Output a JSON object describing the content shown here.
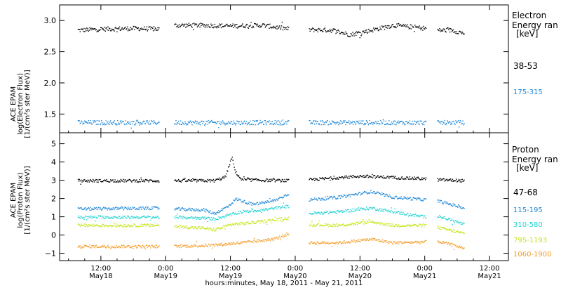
{
  "xaxis": {
    "caption": "hours:minutes, May 18, 2011 - May 21, 2011",
    "ticks": [
      {
        "t": 12,
        "top": "12:00",
        "bottom": "May18"
      },
      {
        "t": 24,
        "top": "0:00",
        "bottom": "May19"
      },
      {
        "t": 36,
        "top": "12:00",
        "bottom": "May19"
      },
      {
        "t": 48,
        "top": "0:00",
        "bottom": "May20"
      },
      {
        "t": 60,
        "top": "12:00",
        "bottom": "May20"
      },
      {
        "t": 72,
        "top": "0:00",
        "bottom": "May21"
      },
      {
        "t": 84,
        "top": "12:00",
        "bottom": "May21"
      }
    ]
  },
  "chart_data": [
    {
      "type": "scatter",
      "title": "",
      "ylabel_lines": [
        "ACE EPAM",
        "log(Electron Flux)",
        "[1/(cm²s ster MeV)]"
      ],
      "legend_title": [
        "Electron",
        "Energy ran",
        "[keV]"
      ],
      "ylim": [
        1.2,
        3.25
      ],
      "yticks": [
        1.5,
        2.0,
        2.5,
        3.0
      ],
      "ytick_labels": [
        "1.5",
        "2.0",
        "2.5",
        "3.0"
      ],
      "x_unit": "hours since 2011-05-18 00:00",
      "data_gaps": [
        [
          22.8,
          25.5
        ],
        [
          46.8,
          50.5
        ],
        [
          72.2,
          74.2
        ]
      ],
      "x_range": [
        7.7,
        79.3
      ],
      "series": [
        {
          "name": "38-53",
          "color": "#000000",
          "level": 2.88,
          "profile": [
            [
              7.7,
              2.85
            ],
            [
              12,
              2.87
            ],
            [
              18,
              2.88
            ],
            [
              22.8,
              2.87
            ],
            [
              25.5,
              2.93
            ],
            [
              30,
              2.93
            ],
            [
              36,
              2.92
            ],
            [
              42,
              2.93
            ],
            [
              46.8,
              2.87
            ],
            [
              50.5,
              2.86
            ],
            [
              55,
              2.85
            ],
            [
              58,
              2.78
            ],
            [
              62,
              2.85
            ],
            [
              66,
              2.93
            ],
            [
              70,
              2.9
            ],
            [
              72.2,
              2.88
            ],
            [
              74.2,
              2.85
            ],
            [
              77,
              2.85
            ],
            [
              79.3,
              2.8
            ]
          ]
        },
        {
          "name": "175-315",
          "color": "#1e88d8",
          "level": 1.37,
          "profile": [
            [
              7.7,
              1.37
            ],
            [
              22.8,
              1.37
            ],
            [
              25.5,
              1.37
            ],
            [
              46.8,
              1.37
            ],
            [
              50.5,
              1.37
            ],
            [
              72.2,
              1.37
            ],
            [
              74.2,
              1.37
            ],
            [
              79.3,
              1.37
            ]
          ]
        }
      ]
    },
    {
      "type": "scatter",
      "title": "",
      "ylabel_lines": [
        "ACE EPAM",
        "log(Proton Flux)",
        "[1/(cm²s ster MeV)]"
      ],
      "legend_title": [
        "Proton",
        "Energy ran",
        "[keV]"
      ],
      "ylim": [
        -1.4,
        5.6
      ],
      "yticks": [
        -1,
        0,
        1,
        2,
        3,
        4,
        5
      ],
      "ytick_labels": [
        "−1",
        "0",
        "1",
        "2",
        "3",
        "4",
        "5"
      ],
      "x_unit": "hours since 2011-05-18 00:00",
      "data_gaps": [
        [
          22.8,
          25.5
        ],
        [
          46.8,
          50.5
        ],
        [
          72.2,
          74.2
        ]
      ],
      "x_range": [
        7.7,
        79.3
      ],
      "series": [
        {
          "name": "47-68",
          "color": "#000000",
          "profile": [
            [
              7.7,
              3.0
            ],
            [
              22.8,
              3.0
            ],
            [
              25.5,
              3.0
            ],
            [
              33,
              3.0
            ],
            [
              35,
              3.2
            ],
            [
              36.2,
              4.3
            ],
            [
              36.8,
              3.5
            ],
            [
              38,
              3.05
            ],
            [
              46.8,
              3.0
            ],
            [
              50.5,
              3.05
            ],
            [
              60,
              3.25
            ],
            [
              72.2,
              3.1
            ],
            [
              74.2,
              3.05
            ],
            [
              79.3,
              3.0
            ]
          ]
        },
        {
          "name": "115-195",
          "color": "#1e88d8",
          "profile": [
            [
              7.7,
              1.45
            ],
            [
              22.8,
              1.5
            ],
            [
              25.5,
              1.45
            ],
            [
              31,
              1.4
            ],
            [
              33,
              1.2
            ],
            [
              35.5,
              1.6
            ],
            [
              37,
              2.0
            ],
            [
              40,
              1.7
            ],
            [
              44,
              1.9
            ],
            [
              46.8,
              2.3
            ],
            [
              50.5,
              1.95
            ],
            [
              56,
              2.1
            ],
            [
              62,
              2.4
            ],
            [
              66,
              2.1
            ],
            [
              72.2,
              1.95
            ],
            [
              74.2,
              1.9
            ],
            [
              79.3,
              1.5
            ]
          ]
        },
        {
          "name": "310-580",
          "color": "#22d3d3",
          "profile": [
            [
              7.7,
              1.0
            ],
            [
              22.8,
              1.0
            ],
            [
              25.5,
              1.0
            ],
            [
              31,
              0.95
            ],
            [
              33,
              0.9
            ],
            [
              35.5,
              1.1
            ],
            [
              38,
              1.3
            ],
            [
              42,
              1.4
            ],
            [
              46.8,
              1.6
            ],
            [
              50.5,
              1.2
            ],
            [
              56,
              1.3
            ],
            [
              62,
              1.5
            ],
            [
              66,
              1.3
            ],
            [
              72.2,
              1.0
            ],
            [
              74.2,
              1.1
            ],
            [
              79.3,
              0.6
            ]
          ]
        },
        {
          "name": "795-1193",
          "color": "#c7e31a",
          "profile": [
            [
              7.7,
              0.55
            ],
            [
              22.8,
              0.55
            ],
            [
              25.5,
              0.5
            ],
            [
              31,
              0.4
            ],
            [
              33,
              0.3
            ],
            [
              36,
              0.6
            ],
            [
              40,
              0.7
            ],
            [
              46.8,
              0.95
            ],
            [
              50.5,
              0.6
            ],
            [
              56,
              0.55
            ],
            [
              62,
              0.75
            ],
            [
              66,
              0.55
            ],
            [
              72.2,
              0.55
            ],
            [
              74.2,
              0.45
            ],
            [
              79.3,
              0.1
            ]
          ]
        },
        {
          "name": "1060-1900",
          "color": "#f39c25",
          "profile": [
            [
              7.7,
              -0.6
            ],
            [
              22.8,
              -0.6
            ],
            [
              25.5,
              -0.6
            ],
            [
              31,
              -0.55
            ],
            [
              34,
              -0.5
            ],
            [
              38,
              -0.4
            ],
            [
              44,
              -0.2
            ],
            [
              46.8,
              0.1
            ],
            [
              50.5,
              -0.4
            ],
            [
              56,
              -0.4
            ],
            [
              62,
              -0.2
            ],
            [
              66,
              -0.4
            ],
            [
              72.2,
              -0.35
            ],
            [
              74.2,
              -0.3
            ],
            [
              79.3,
              -0.7
            ]
          ]
        }
      ]
    }
  ]
}
